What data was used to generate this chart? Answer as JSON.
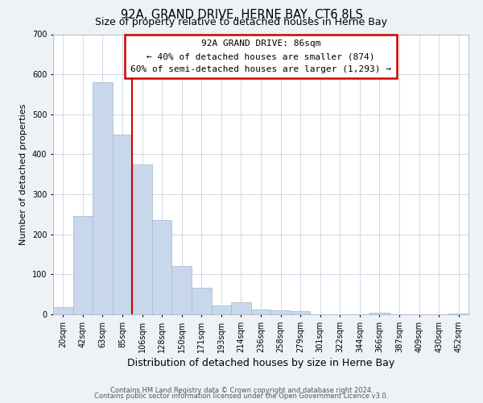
{
  "title": "92A, GRAND DRIVE, HERNE BAY, CT6 8LS",
  "subtitle": "Size of property relative to detached houses in Herne Bay",
  "xlabel": "Distribution of detached houses by size in Herne Bay",
  "ylabel": "Number of detached properties",
  "bar_labels": [
    "20sqm",
    "42sqm",
    "63sqm",
    "85sqm",
    "106sqm",
    "128sqm",
    "150sqm",
    "171sqm",
    "193sqm",
    "214sqm",
    "236sqm",
    "258sqm",
    "279sqm",
    "301sqm",
    "322sqm",
    "344sqm",
    "366sqm",
    "387sqm",
    "409sqm",
    "430sqm",
    "452sqm"
  ],
  "bar_heights": [
    18,
    245,
    580,
    450,
    375,
    235,
    120,
    67,
    23,
    30,
    13,
    10,
    8,
    0,
    0,
    0,
    5,
    0,
    0,
    0,
    3
  ],
  "bar_color": "#c8d8ea",
  "bar_edge_color": "#a0b8cc",
  "vline_color": "#cc0000",
  "ylim": [
    0,
    700
  ],
  "yticks": [
    0,
    100,
    200,
    300,
    400,
    500,
    600,
    700
  ],
  "annotation_title": "92A GRAND DRIVE: 86sqm",
  "annotation_line1": "← 40% of detached houses are smaller (874)",
  "annotation_line2": "60% of semi-detached houses are larger (1,293) →",
  "annotation_box_color": "#ffffff",
  "annotation_box_edge": "#cc0000",
  "footer1": "Contains HM Land Registry data © Crown copyright and database right 2024.",
  "footer2": "Contains public sector information licensed under the Open Government Licence v3.0.",
  "title_fontsize": 10.5,
  "subtitle_fontsize": 9,
  "xlabel_fontsize": 9,
  "ylabel_fontsize": 8,
  "tick_fontsize": 7,
  "annot_fontsize": 8,
  "footer_fontsize": 6,
  "background_color": "#eef2f6",
  "plot_bg_color": "#ffffff",
  "grid_color": "#c8d4e0"
}
